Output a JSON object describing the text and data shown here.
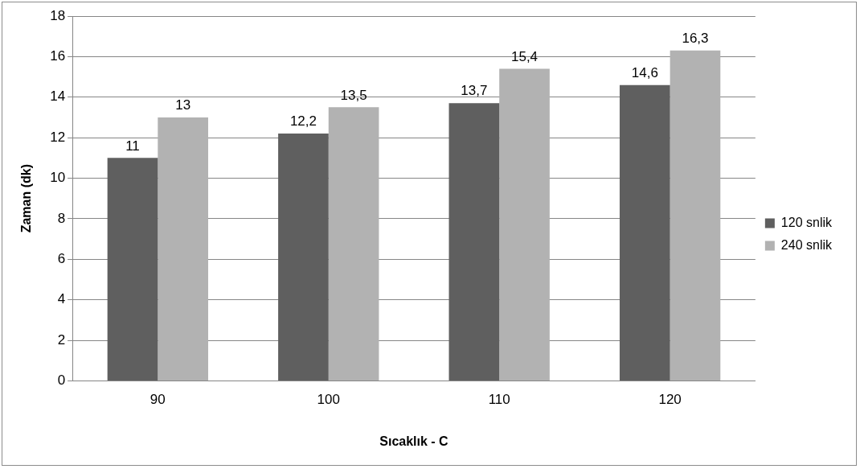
{
  "chart_data": {
    "type": "bar",
    "xlabel": "Sıcaklık - C",
    "ylabel": "Zaman (dk)",
    "categories": [
      "90",
      "100",
      "110",
      "120"
    ],
    "series": [
      {
        "name": "120 snlik",
        "color": "#5f5f5f",
        "values": [
          11,
          12.2,
          13.7,
          14.6
        ],
        "value_labels": [
          "11",
          "12,2",
          "13,7",
          "14,6"
        ]
      },
      {
        "name": "240 snlik",
        "color": "#b2b2b2",
        "values": [
          13,
          13.5,
          15.4,
          16.3
        ],
        "value_labels": [
          "13",
          "13,5",
          "15,4",
          "16,3"
        ]
      }
    ],
    "ylim": [
      0,
      18
    ],
    "yticks": [
      0,
      2,
      4,
      6,
      8,
      10,
      12,
      14,
      16,
      18
    ],
    "grid": "y",
    "legend": "right"
  }
}
